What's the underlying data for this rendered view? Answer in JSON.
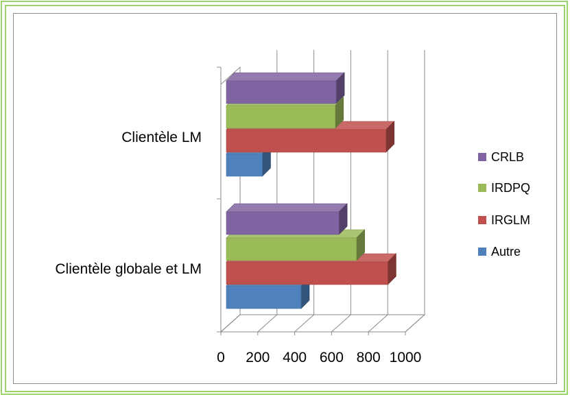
{
  "chart_data": {
    "type": "bar",
    "orientation": "horizontal",
    "style": "3d",
    "categories": [
      "Clientèle globale et LM",
      "Clientèle LM"
    ],
    "series": [
      {
        "name": "Autre",
        "color": "#4f81bd",
        "values": [
          435,
          225
        ]
      },
      {
        "name": "IRGLM",
        "color": "#c0504d",
        "values": [
          905,
          895
        ]
      },
      {
        "name": "IRDPQ",
        "color": "#9bbb59",
        "values": [
          735,
          620
        ]
      },
      {
        "name": "CRLB",
        "color": "#8064a2",
        "values": [
          640,
          625
        ]
      }
    ],
    "xlim": [
      0,
      1000
    ],
    "xticks": [
      "0",
      "200",
      "400",
      "600",
      "800",
      "1000"
    ],
    "grid": true,
    "legend_position": "right",
    "legend_order": [
      "CRLB",
      "IRDPQ",
      "IRGLM",
      "Autre"
    ]
  }
}
